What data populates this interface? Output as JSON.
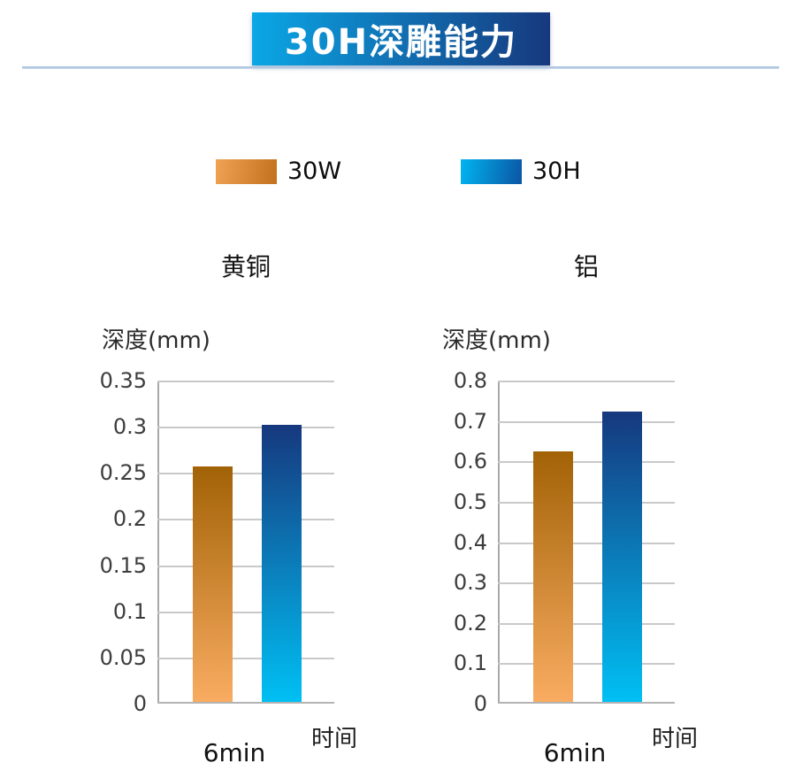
{
  "header": {
    "title": "30H深雕能力",
    "banner_gradient_left": "#0aa7e6",
    "banner_gradient_right": "#17387e",
    "divider_color_top": "#9db9d6",
    "divider_color_bottom": "#cfdfee"
  },
  "legend": {
    "items": [
      {
        "label": "30W",
        "color_left": "#f0a355",
        "color_right": "#c2711c"
      },
      {
        "label": "30H",
        "color_left": "#00b5f0",
        "color_right": "#0b55a4"
      }
    ]
  },
  "chart_data": [
    {
      "type": "bar",
      "title": "黄铜",
      "ylabel": "深度(mm)",
      "xlabel": "时间",
      "categories": [
        "6min"
      ],
      "series": [
        {
          "name": "30W",
          "values": [
            0.255
          ],
          "color_top": "#a26206",
          "color_bottom": "#f9ac61"
        },
        {
          "name": "30H",
          "values": [
            0.3
          ],
          "color_top": "#16387e",
          "color_bottom": "#00c0f4"
        }
      ],
      "ylim": [
        0,
        0.35
      ],
      "ytick_step": 0.05,
      "grid": true,
      "legend_position": "top"
    },
    {
      "type": "bar",
      "title": "铝",
      "ylabel": "深度(mm)",
      "xlabel": "时间",
      "categories": [
        "6min"
      ],
      "series": [
        {
          "name": "30W",
          "values": [
            0.62
          ],
          "color_top": "#a26206",
          "color_bottom": "#f9ac61"
        },
        {
          "name": "30H",
          "values": [
            0.72
          ],
          "color_top": "#16387e",
          "color_bottom": "#00c0f4"
        }
      ],
      "ylim": [
        0,
        0.8
      ],
      "ytick_step": 0.1,
      "grid": true,
      "legend_position": "top"
    }
  ],
  "styles": {
    "gridline_color": "#c9c9c9",
    "x_axis_color": "#b3b3b3",
    "y_axis_color": "#a8a8a8",
    "tick_text_color": "#3d3d3d"
  }
}
